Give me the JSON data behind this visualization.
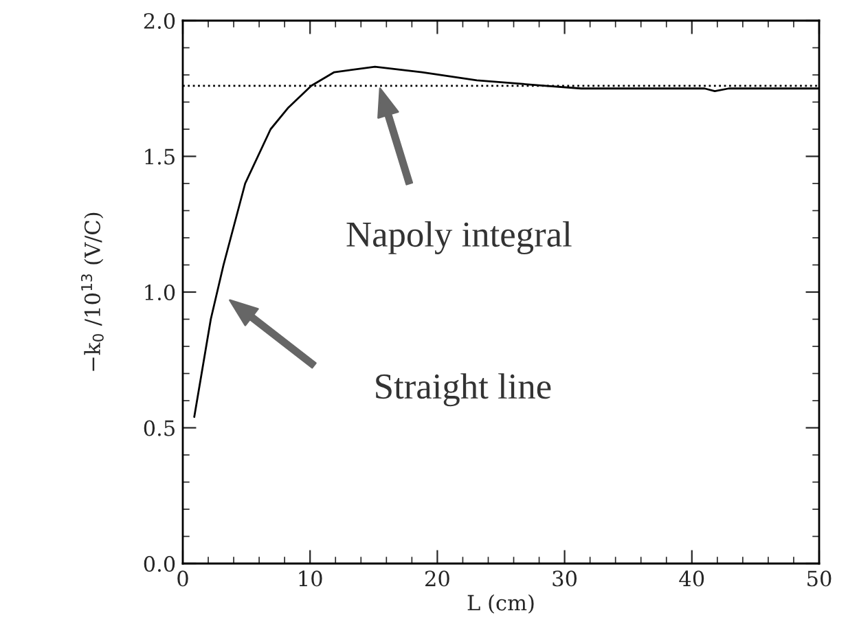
{
  "chart_data": {
    "type": "line",
    "xlabel": "L (cm)",
    "ylabel": "−k$_{0}$ /10$^{13}$ (V/C)",
    "x": [
      0.9,
      2.2,
      3.2,
      4.9,
      6.9,
      8.3,
      10.1,
      11.9,
      15.1,
      18.8,
      23.1,
      28.5,
      31.3,
      41,
      41.8,
      42.9,
      49.9
    ],
    "series": [
      {
        "color": "#000000",
        "values": [
          0.54,
          0.9,
          1.1,
          1.4,
          1.6,
          1.68,
          1.76,
          1.81,
          1.83,
          1.81,
          1.78,
          1.76,
          1.75,
          1.75,
          1.74,
          1.75,
          1.75
        ]
      }
    ],
    "xlim": [
      0,
      50
    ],
    "ylim": [
      0,
      2
    ],
    "xticks": [
      0,
      10,
      20,
      30,
      40,
      50
    ],
    "yticks": [
      {
        "value": 0,
        "label": "0.0"
      },
      {
        "value": 0.5,
        "label": "0.5"
      },
      {
        "value": 1,
        "label": "1.0"
      },
      {
        "value": 1.5,
        "label": "1.5"
      },
      {
        "value": 2,
        "label": "2.0"
      }
    ],
    "ref_lines": [
      {
        "axis": "y",
        "value": 1.76,
        "color": "#000000",
        "line_style": "dotted"
      }
    ],
    "annotations": [
      "Napoly integral",
      "Straight line"
    ],
    "grid": false,
    "legend": false,
    "marker": "none",
    "line_style": "solid"
  }
}
